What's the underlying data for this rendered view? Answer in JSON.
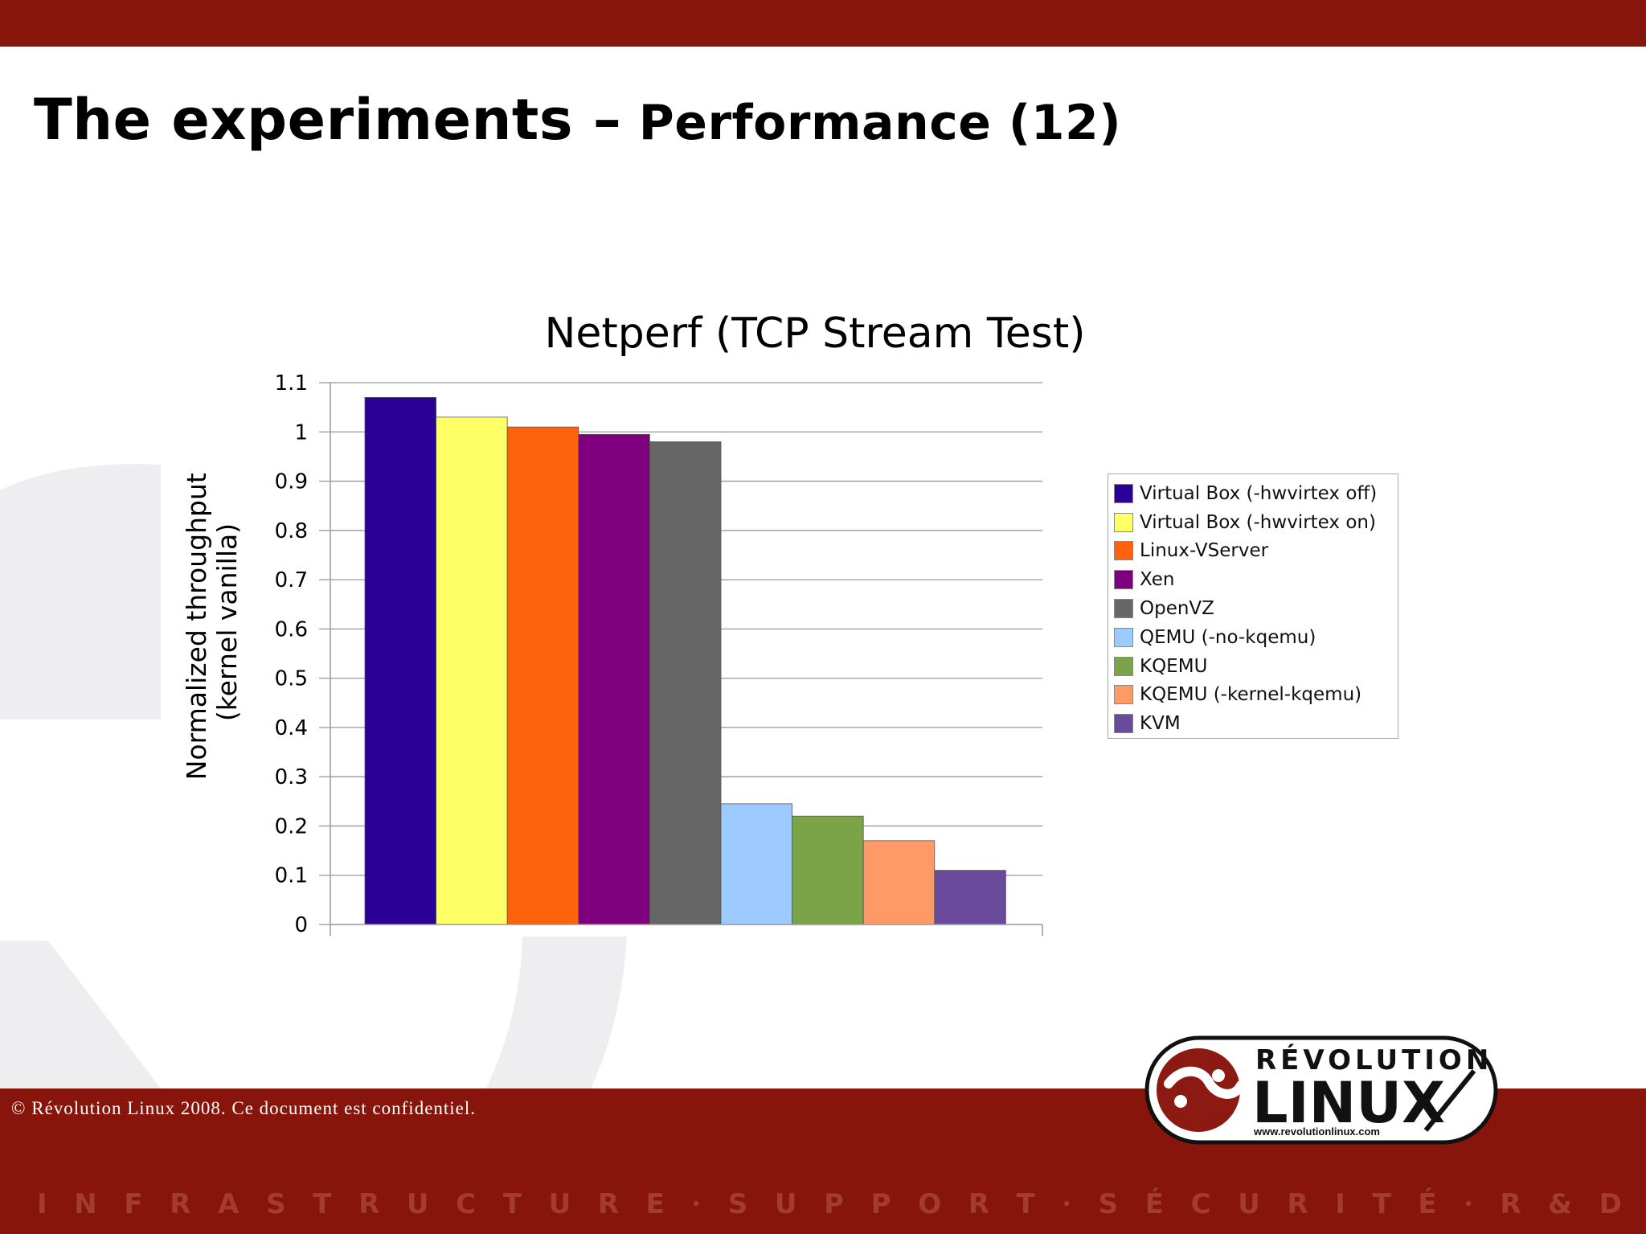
{
  "slide": {
    "title_main": "The experiments –",
    "title_sub": " Performance (12)"
  },
  "chart_data": {
    "type": "bar",
    "title": "Netperf (TCP Stream Test)",
    "ylabel": "Normalized throughput (kernel vanilla)",
    "ylabel_lines": [
      "Normalized throughput",
      "(kernel vanilla)"
    ],
    "xlabel": "",
    "ylim": [
      0,
      1.1
    ],
    "yticks": [
      "0",
      "0.1",
      "0.2",
      "0.3",
      "0.4",
      "0.5",
      "0.6",
      "0.7",
      "0.8",
      "0.9",
      "1",
      "1.1"
    ],
    "grid": true,
    "legend_position": "right",
    "series": [
      {
        "name": "Virtual Box (-hwvirtex off)",
        "value": 1.07,
        "color": "#2a0096"
      },
      {
        "name": "Virtual Box (-hwvirtex on)",
        "value": 1.03,
        "color": "#ffff66"
      },
      {
        "name": "Linux-VServer",
        "value": 1.01,
        "color": "#ff620c"
      },
      {
        "name": "Xen",
        "value": 0.995,
        "color": "#7e007e"
      },
      {
        "name": "OpenVZ",
        "value": 0.98,
        "color": "#666666"
      },
      {
        "name": "QEMU (-no-kqemu)",
        "value": 0.245,
        "color": "#9ecbff"
      },
      {
        "name": "KQEMU",
        "value": 0.22,
        "color": "#7ba347"
      },
      {
        "name": "KQEMU (-kernel-kqemu)",
        "value": 0.17,
        "color": "#ff9966"
      },
      {
        "name": "KVM",
        "value": 0.11,
        "color": "#694a9b"
      }
    ]
  },
  "footer": {
    "copyright": "© Révolution Linux 2008. Ce document est confidentiel.",
    "tagline": [
      "I",
      "N",
      "F",
      "R",
      "A",
      "S",
      "T",
      "R",
      "U",
      "C",
      "T",
      "U",
      "R",
      "E",
      "•",
      "S",
      "U",
      "P",
      "P",
      "O",
      "R",
      "T",
      "•",
      "S",
      "É",
      "C",
      "U",
      "R",
      "I",
      "T",
      "É",
      "•",
      "R",
      "&",
      "D"
    ]
  },
  "logo": {
    "line1": "RÉVOLUTION",
    "line2": "LINUX",
    "url": "www.revolutionlinux.com"
  },
  "colors": {
    "brand_red": "#87150c"
  }
}
